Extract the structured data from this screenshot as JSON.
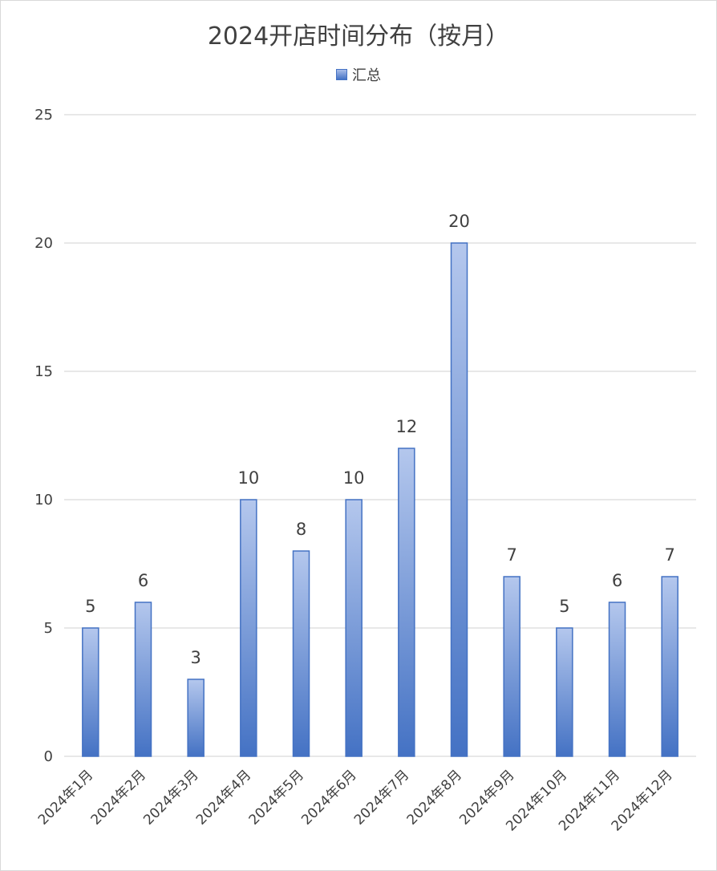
{
  "chart_data": {
    "type": "bar",
    "title": "2024开店时间分布（按月）",
    "categories": [
      "2024年1月",
      "2024年2月",
      "2024年3月",
      "2024年4月",
      "2024年5月",
      "2024年6月",
      "2024年7月",
      "2024年8月",
      "2024年9月",
      "2024年10月",
      "2024年11月",
      "2024年12月"
    ],
    "series": [
      {
        "name": "汇总",
        "values": [
          5,
          6,
          3,
          10,
          8,
          10,
          12,
          20,
          7,
          5,
          6,
          7
        ]
      }
    ],
    "ylim": [
      0,
      25
    ],
    "yticks": [
      0,
      5,
      10,
      15,
      20,
      25
    ],
    "xlabel": "",
    "ylabel": "",
    "grid": true,
    "legend_position": "top",
    "colors": {
      "bar_top": "#b4c7ed",
      "bar_bottom": "#4472c4",
      "bar_border": "#4472c4",
      "grid": "#d9d9d9",
      "text": "#404040"
    }
  }
}
